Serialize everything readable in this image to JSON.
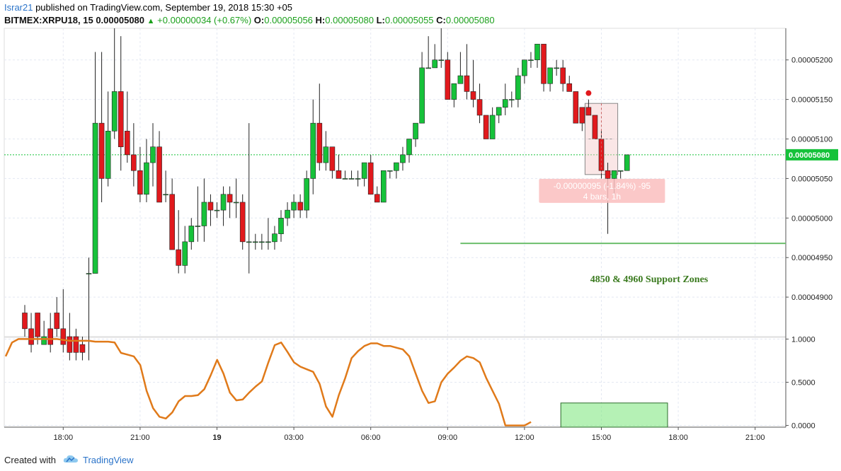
{
  "header": {
    "author": "Israr21",
    "published_text": " published on TradingView.com, September 19, 2018 15:30 +05",
    "symbol": "BITMEX:XRPU18, 15",
    "last": "0.00005080",
    "change": "+0.00000034 (+0.67%)",
    "o_label": "O:",
    "o": "0.00005056",
    "h_label": "H:",
    "h": "0.00005080",
    "l_label": "L:",
    "l": "0.00005055",
    "c_label": "C:",
    "c": "0.00005080"
  },
  "footer": {
    "created_with": "Created with",
    "brand": "TradingView"
  },
  "chart_data": [
    {
      "type": "candlestick",
      "ylim": [
        4.85e-05,
        5.24e-05
      ],
      "y_ticks": [
        "0.00005200",
        "0.00005150",
        "0.00005100",
        "0.00005050",
        "0.00005000",
        "0.00004950",
        "0.00004900"
      ],
      "y_tick_values": [
        5.2e-05,
        5.15e-05,
        5.1e-05,
        5.05e-05,
        5e-05,
        4.95e-05,
        4.9e-05
      ],
      "x_ticks": [
        "18:00",
        "21:00",
        "19",
        "03:00",
        "06:00",
        "09:00",
        "12:00",
        "15:00",
        "18:00",
        "21:00"
      ],
      "x_tick_index": [
        6,
        18,
        30,
        42,
        54,
        66,
        78,
        90,
        102,
        114
      ],
      "last_price_label": "0.00005080",
      "last_price": 5.08e-05,
      "horizontal_line": {
        "value": 4.968e-05,
        "from_index": 68
      },
      "annotation": "4850 & 4960 Support Zones",
      "measure": {
        "line1": "-0.00000095 (-1.84%) -95",
        "line2": "4 bars, 1h",
        "from_index": 88,
        "to_index": 92,
        "top": 5.145e-05,
        "bottom": 5.055e-05
      },
      "marker_dot": {
        "index": 88,
        "value": 5.158e-05
      },
      "colors": {
        "up": "#16c23a",
        "down": "#e1191d",
        "line": "#6cbe6c"
      },
      "ohlc": [
        [
          4.88e-05,
          4.89e-05,
          4.85e-05,
          4.86e-05
        ],
        [
          4.86e-05,
          4.88e-05,
          4.83e-05,
          4.84e-05
        ],
        [
          4.88e-05,
          4.88e-05,
          4.84e-05,
          4.85e-05
        ],
        [
          4.84e-05,
          4.87e-05,
          4.84e-05,
          4.85e-05
        ],
        [
          4.86e-05,
          4.88e-05,
          4.83e-05,
          4.84e-05
        ],
        [
          4.88e-05,
          4.9e-05,
          4.85e-05,
          4.86e-05
        ],
        [
          4.86e-05,
          4.91e-05,
          4.83e-05,
          4.84e-05
        ],
        [
          4.85e-05,
          4.88e-05,
          4.82e-05,
          4.83e-05
        ],
        [
          4.85e-05,
          4.86e-05,
          4.82e-05,
          4.83e-05
        ],
        [
          4.84e-05,
          4.85e-05,
          4.82e-05,
          4.83e-05
        ],
        [
          4.93e-05,
          4.95e-05,
          4.82e-05,
          4.93e-05
        ],
        [
          4.93e-05,
          5.21e-05,
          4.93e-05,
          5.12e-05
        ],
        [
          5.12e-05,
          5.21e-05,
          5.02e-05,
          5.05e-05
        ],
        [
          5.05e-05,
          5.16e-05,
          5.04e-05,
          5.11e-05
        ],
        [
          5.11e-05,
          5.24e-05,
          5.1e-05,
          5.16e-05
        ],
        [
          5.16e-05,
          5.23e-05,
          5.06e-05,
          5.09e-05
        ],
        [
          5.11e-05,
          5.16e-05,
          5.07e-05,
          5.08e-05
        ],
        [
          5.08e-05,
          5.12e-05,
          5.04e-05,
          5.06e-05
        ],
        [
          5.06e-05,
          5.09e-05,
          5.02e-05,
          5.03e-05
        ],
        [
          5.03e-05,
          5.1e-05,
          5.02e-05,
          5.07e-05
        ],
        [
          5.07e-05,
          5.12e-05,
          5.04e-05,
          5.09e-05
        ],
        [
          5.09e-05,
          5.11e-05,
          5.02e-05,
          5.02e-05
        ],
        [
          5.03e-05,
          5.06e-05,
          5.02e-05,
          5.03e-05
        ],
        [
          5.03e-05,
          5.05e-05,
          4.96e-05,
          4.96e-05
        ],
        [
          4.96e-05,
          5.01e-05,
          4.93e-05,
          4.94e-05
        ],
        [
          4.94e-05,
          4.99e-05,
          4.93e-05,
          4.97e-05
        ],
        [
          4.97e-05,
          5e-05,
          4.96e-05,
          4.99e-05
        ],
        [
          4.99e-05,
          5.04e-05,
          4.97e-05,
          4.99e-05
        ],
        [
          4.99e-05,
          5.05e-05,
          4.97e-05,
          5.02e-05
        ],
        [
          5.02e-05,
          5.03e-05,
          4.99e-05,
          5.01e-05
        ],
        [
          5.01e-05,
          5.02e-05,
          5e-05,
          5.01e-05
        ],
        [
          5.01e-05,
          5.04e-05,
          4.99e-05,
          5.03e-05
        ],
        [
          5.03e-05,
          5.04e-05,
          5e-05,
          5.02e-05
        ],
        [
          5.02e-05,
          5.05e-05,
          5e-05,
          5.02e-05
        ],
        [
          5.02e-05,
          5.03e-05,
          4.96e-05,
          4.97e-05
        ],
        [
          4.97e-05,
          5.12e-05,
          4.93e-05,
          4.97e-05
        ],
        [
          4.97e-05,
          4.98e-05,
          4.96e-05,
          4.97e-05
        ],
        [
          4.97e-05,
          4.98e-05,
          4.96e-05,
          4.97e-05
        ],
        [
          4.97e-05,
          5e-05,
          4.96e-05,
          4.97e-05
        ],
        [
          4.97e-05,
          4.99e-05,
          4.96e-05,
          4.98e-05
        ],
        [
          4.98e-05,
          5.01e-05,
          4.97e-05,
          5e-05
        ],
        [
          5e-05,
          5.02e-05,
          4.99e-05,
          5.01e-05
        ],
        [
          5.01e-05,
          5.03e-05,
          5e-05,
          5.02e-05
        ],
        [
          5.02e-05,
          5.03e-05,
          5e-05,
          5.01e-05
        ],
        [
          5.01e-05,
          5.06e-05,
          5e-05,
          5.05e-05
        ],
        [
          5.05e-05,
          5.15e-05,
          5.03e-05,
          5.12e-05
        ],
        [
          5.12e-05,
          5.17e-05,
          5.06e-05,
          5.07e-05
        ],
        [
          5.07e-05,
          5.11e-05,
          5.06e-05,
          5.09e-05
        ],
        [
          5.09e-05,
          5.09e-05,
          5.05e-05,
          5.06e-05
        ],
        [
          5.06e-05,
          5.08e-05,
          5.05e-05,
          5.05e-05
        ],
        [
          5.05e-05,
          5.06e-05,
          5.05e-05,
          5.05e-05
        ],
        [
          5.05e-05,
          5.06e-05,
          5.05e-05,
          5.05e-05
        ],
        [
          5.05e-05,
          5.06e-05,
          5.04e-05,
          5.05e-05
        ],
        [
          5.05e-05,
          5.07e-05,
          5.04e-05,
          5.07e-05
        ],
        [
          5.07e-05,
          5.08e-05,
          5.03e-05,
          5.03e-05
        ],
        [
          5.03e-05,
          5.04e-05,
          5.02e-05,
          5.02e-05
        ],
        [
          5.02e-05,
          5.06e-05,
          5.02e-05,
          5.06e-05
        ],
        [
          5.06e-05,
          5.06e-05,
          5.05e-05,
          5.06e-05
        ],
        [
          5.06e-05,
          5.07e-05,
          5.05e-05,
          5.07e-05
        ],
        [
          5.07e-05,
          5.09e-05,
          5.06e-05,
          5.08e-05
        ],
        [
          5.08e-05,
          5.1e-05,
          5.07e-05,
          5.1e-05
        ],
        [
          5.1e-05,
          5.12e-05,
          5.09e-05,
          5.12e-05
        ],
        [
          5.12e-05,
          5.21e-05,
          5.12e-05,
          5.19e-05
        ],
        [
          5.19e-05,
          5.23e-05,
          5.19e-05,
          5.19e-05
        ],
        [
          5.19e-05,
          5.22e-05,
          5.19e-05,
          5.2e-05
        ],
        [
          5.2e-05,
          5.24e-05,
          5.19e-05,
          5.2e-05
        ],
        [
          5.2e-05,
          5.21e-05,
          5.15e-05,
          5.15e-05
        ],
        [
          5.15e-05,
          5.17e-05,
          5.14e-05,
          5.17e-05
        ],
        [
          5.17e-05,
          5.21e-05,
          5.17e-05,
          5.18e-05
        ],
        [
          5.18e-05,
          5.22e-05,
          5.15e-05,
          5.16e-05
        ],
        [
          5.16e-05,
          5.2e-05,
          5.14e-05,
          5.15e-05
        ],
        [
          5.15e-05,
          5.17e-05,
          5.12e-05,
          5.13e-05
        ],
        [
          5.13e-05,
          5.13e-05,
          5.1e-05,
          5.1e-05
        ],
        [
          5.1e-05,
          5.14e-05,
          5.1e-05,
          5.13e-05
        ],
        [
          5.13e-05,
          5.14e-05,
          5.12e-05,
          5.14e-05
        ],
        [
          5.14e-05,
          5.17e-05,
          5.13e-05,
          5.15e-05
        ],
        [
          5.15e-05,
          5.16e-05,
          5.14e-05,
          5.15e-05
        ],
        [
          5.15e-05,
          5.19e-05,
          5.14e-05,
          5.18e-05
        ],
        [
          5.18e-05,
          5.2e-05,
          5.17e-05,
          5.2e-05
        ],
        [
          5.2e-05,
          5.21e-05,
          5.19e-05,
          5.2e-05
        ],
        [
          5.2e-05,
          5.22e-05,
          5.19e-05,
          5.22e-05
        ],
        [
          5.22e-05,
          5.22e-05,
          5.16e-05,
          5.17e-05
        ],
        [
          5.17e-05,
          5.19e-05,
          5.16e-05,
          5.19e-05
        ],
        [
          5.19e-05,
          5.2e-05,
          5.18e-05,
          5.19e-05
        ],
        [
          5.19e-05,
          5.2e-05,
          5.16e-05,
          5.17e-05
        ],
        [
          5.17e-05,
          5.18e-05,
          5.16e-05,
          5.16e-05
        ],
        [
          5.16e-05,
          5.16e-05,
          5.12e-05,
          5.12e-05
        ],
        [
          5.14e-05,
          5.14e-05,
          5.11e-05,
          5.12e-05
        ],
        [
          5.14e-05,
          5.15e-05,
          5.13e-05,
          5.13e-05
        ],
        [
          5.13e-05,
          5.13e-05,
          5.1e-05,
          5.1e-05
        ],
        [
          5.1e-05,
          5.11e-05,
          5.05e-05,
          5.06e-05
        ],
        [
          5.06e-05,
          5.07e-05,
          4.98e-05,
          5.05e-05
        ],
        [
          5.05e-05,
          5.06e-05,
          5.03e-05,
          5.06e-05
        ],
        [
          5.06e-05,
          5.06e-05,
          5.05e-05,
          5.06e-05
        ],
        [
          5.06e-05,
          5.08e-05,
          5.06e-05,
          5.08e-05
        ]
      ]
    },
    {
      "type": "line",
      "ylim": [
        -0.02,
        1.02
      ],
      "y_ticks": [
        "1.0000",
        "0.5000",
        "0.0000"
      ],
      "y_tick_values": [
        1.0,
        0.5,
        0.0
      ],
      "color": "#e07a1a",
      "values": [
        0.8,
        0.96,
        1.0,
        1.0,
        1.0,
        1.0,
        1.0,
        1.0,
        1.0,
        0.99,
        0.98,
        0.98,
        0.98,
        0.98,
        0.97,
        0.97,
        0.97,
        0.96,
        0.84,
        0.82,
        0.8,
        0.7,
        0.4,
        0.2,
        0.1,
        0.08,
        0.15,
        0.28,
        0.34,
        0.34,
        0.35,
        0.42,
        0.58,
        0.76,
        0.6,
        0.38,
        0.29,
        0.3,
        0.38,
        0.45,
        0.51,
        0.73,
        0.93,
        0.96,
        0.85,
        0.73,
        0.68,
        0.65,
        0.62,
        0.48,
        0.22,
        0.1,
        0.35,
        0.55,
        0.78,
        0.86,
        0.92,
        0.95,
        0.95,
        0.92,
        0.92,
        0.9,
        0.88,
        0.8,
        0.6,
        0.4,
        0.26,
        0.28,
        0.5,
        0.6,
        0.67,
        0.75,
        0.8,
        0.78,
        0.73,
        0.55,
        0.4,
        0.25,
        0.0,
        0.0,
        0.0,
        0.0,
        0.04
      ],
      "start_index": 0,
      "highlight_box": {
        "from_index": 84,
        "to_index": 100,
        "top": 0.26,
        "bottom": -0.02
      }
    }
  ]
}
